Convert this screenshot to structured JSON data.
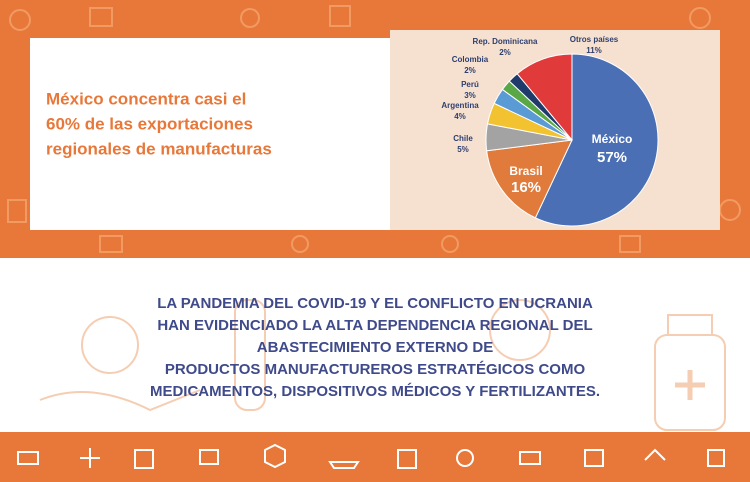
{
  "headline": [
    "México concentra casi el",
    "60% de las exportaciones",
    "regionales de manufacturas"
  ],
  "chart_data": {
    "type": "pie",
    "categories": [
      "México",
      "Brasil",
      "Chile",
      "Argentina",
      "Perú",
      "Colombia",
      "Rep. Dominicana",
      "Otros países"
    ],
    "values": [
      57,
      16,
      5,
      4,
      3,
      2,
      2,
      11
    ],
    "value_labels": [
      "57%",
      "16%",
      "5%",
      "4%",
      "3%",
      "2%",
      "2%",
      "11%"
    ],
    "colors": [
      "#4a6fb5",
      "#e07b3c",
      "#a3a3a3",
      "#f2c230",
      "#5b9bd5",
      "#5aa845",
      "#1f3b6b",
      "#e03a3a"
    ]
  },
  "message": [
    "LA PANDEMIA DEL COVID-19 Y EL CONFLICTO EN UCRANIA",
    "HAN EVIDENCIADO LA ALTA DEPENDENCIA REGIONAL DEL",
    "ABASTECIMIENTO EXTERNO DE",
    "PRODUCTOS MANUFACTUREROS ESTRATÉGICOS COMO",
    "MEDICAMENTOS, DISPOSITIVOS MÉDICOS Y FERTILIZANTES."
  ]
}
